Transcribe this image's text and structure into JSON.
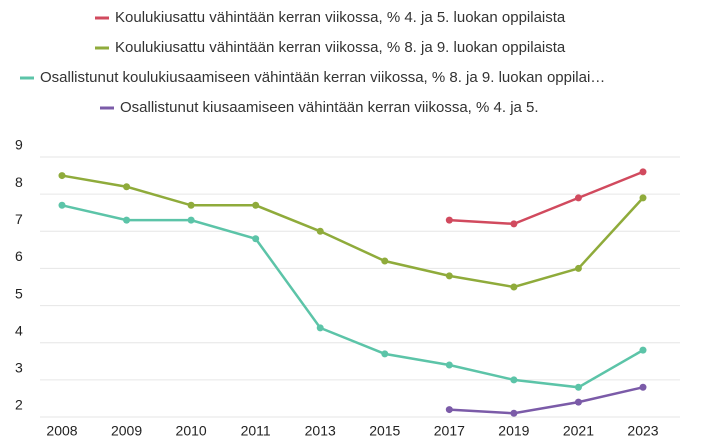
{
  "chart_data": {
    "type": "line",
    "categories": [
      "2008",
      "2009",
      "2010",
      "2011",
      "2013",
      "2015",
      "2017",
      "2019",
      "2021",
      "2023"
    ],
    "series": [
      {
        "name": "Koulukiusattu vähintään kerran viikossa, % 4. ja 5. luokan oppilaista",
        "color": "#d14a5e",
        "values": [
          null,
          null,
          null,
          null,
          null,
          null,
          7.3,
          7.2,
          7.9,
          8.6
        ]
      },
      {
        "name": "Koulukiusattu vähintään kerran viikossa, % 8. ja 9. luokan oppilaista",
        "color": "#8fab3b",
        "values": [
          8.5,
          8.2,
          7.7,
          7.7,
          7.0,
          6.2,
          5.8,
          5.5,
          6.0,
          7.9
        ]
      },
      {
        "name": "Osallistunut koulukiusaamiseen vähintään kerran viikossa, % 8. ja 9. luokan oppilai…",
        "color": "#5cc4a8",
        "values": [
          7.7,
          7.3,
          7.3,
          6.8,
          4.4,
          3.7,
          3.4,
          3.0,
          2.8,
          3.8
        ]
      },
      {
        "name": "Osallistunut kiusaamiseen vähintään kerran viikossa, % 4. ja 5.",
        "color": "#7b5ba8",
        "values": [
          null,
          null,
          null,
          null,
          null,
          null,
          2.2,
          2.1,
          2.4,
          2.8
        ]
      }
    ],
    "ylim": [
      2,
      9
    ],
    "yticks": [
      2,
      3,
      4,
      5,
      6,
      7,
      8,
      9
    ],
    "grid": true,
    "legend": "top"
  }
}
